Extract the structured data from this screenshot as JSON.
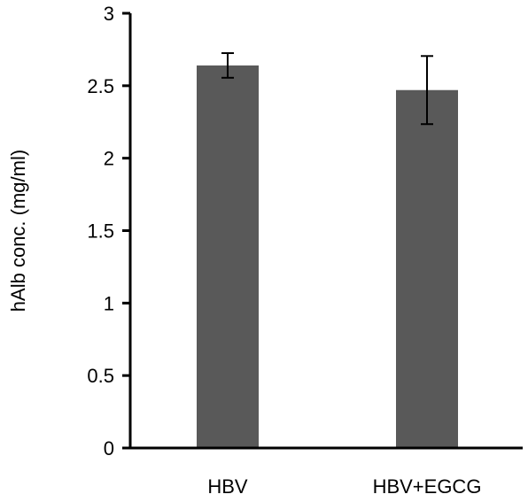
{
  "chart_data": {
    "type": "bar",
    "title": "",
    "xlabel": "",
    "ylabel": "hAlb conc. (mg/ml)",
    "categories": [
      "HBV",
      "HBV+EGCG"
    ],
    "values": [
      2.64,
      2.47
    ],
    "error_bars": [
      0.085,
      0.235
    ],
    "ylim": [
      0,
      3
    ],
    "yticks": [
      0,
      0.5,
      1,
      1.5,
      2,
      2.5,
      3
    ],
    "ytick_labels": [
      "0",
      "0.5",
      "1",
      "1.5",
      "2",
      "2.5",
      "3"
    ],
    "grid": false,
    "legend": "none",
    "bar_color": "#595959",
    "axis_color": "#000000"
  }
}
